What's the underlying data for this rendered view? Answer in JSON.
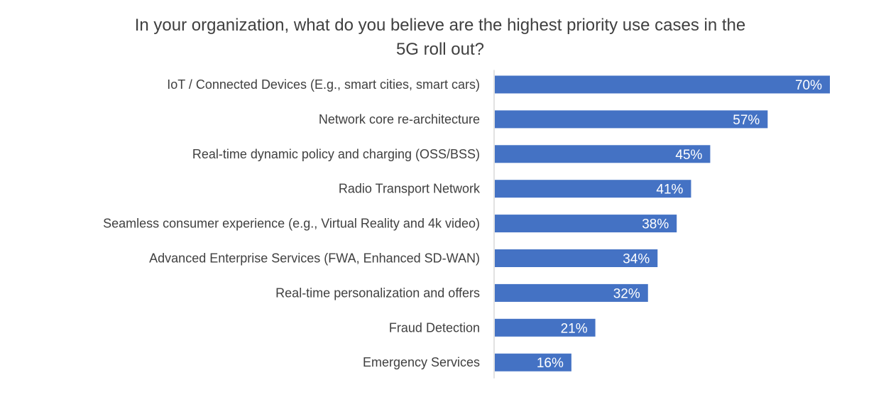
{
  "chart_data": {
    "type": "bar",
    "orientation": "horizontal",
    "title_lines": [
      "In your organization, what do you believe are the highest priority use cases in the",
      "5G roll out?"
    ],
    "categories": [
      "IoT / Connected Devices (E.g., smart cities, smart cars)",
      "Network core re-architecture",
      "Real-time dynamic policy and charging (OSS/BSS)",
      "Radio Transport Network",
      "Seamless consumer experience (e.g., Virtual Reality and 4k video)",
      "Advanced Enterprise Services (FWA, Enhanced SD-WAN)",
      "Real-time personalization and offers",
      "Fraud Detection",
      "Emergency Services"
    ],
    "values": [
      70,
      57,
      45,
      41,
      38,
      34,
      32,
      21,
      16
    ],
    "value_labels": [
      "70%",
      "57%",
      "45%",
      "41%",
      "38%",
      "34%",
      "32%",
      "21%",
      "16%"
    ],
    "xlim": [
      0,
      70
    ],
    "grid": false,
    "bar_color": "#4472C4",
    "axis_color": "#D9D9D9",
    "text_color": "#404040"
  }
}
